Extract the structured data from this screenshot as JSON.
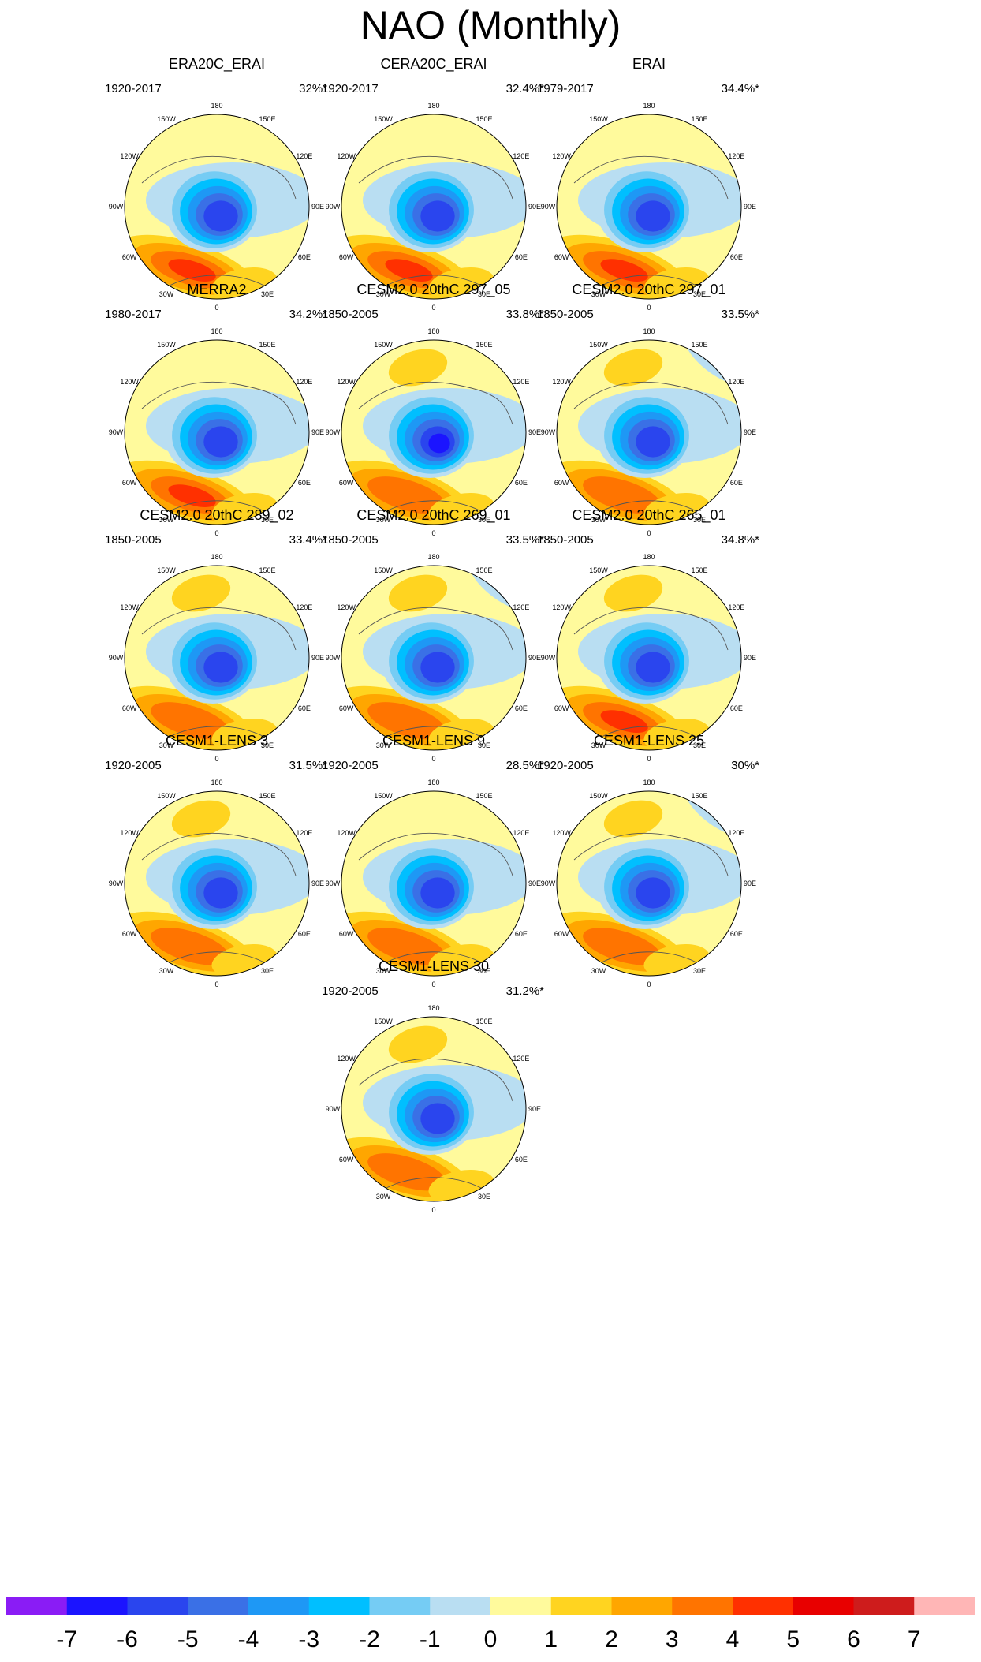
{
  "title": "NAO (Monthly)",
  "chart_data": {
    "type": "polar_contour_map_panels",
    "projection": "north polar stereographic",
    "longitude_labels": [
      "180",
      "150E",
      "120E",
      "90E",
      "60E",
      "30E",
      "0",
      "30W",
      "60W",
      "90W",
      "120W",
      "150W"
    ],
    "panels": [
      {
        "title": "ERA20C_ERAI",
        "years": "1920-2017",
        "variance": "32%*",
        "low_min": -6,
        "high_max": 4,
        "pacific_lobe": 0,
        "east_lobe": -1,
        "nw_pacific_neg": false
      },
      {
        "title": "CERA20C_ERAI",
        "years": "1920-2017",
        "variance": "32.4%*",
        "low_min": -6,
        "high_max": 4,
        "pacific_lobe": 0,
        "east_lobe": -1,
        "nw_pacific_neg": false
      },
      {
        "title": "ERAI",
        "years": "1979-2017",
        "variance": "34.4%*",
        "low_min": -6,
        "high_max": 4,
        "pacific_lobe": 0,
        "east_lobe": -1,
        "nw_pacific_neg": false
      },
      {
        "title": "MERRA2",
        "years": "1980-2017",
        "variance": "34.2%*",
        "low_min": -6,
        "high_max": 4,
        "pacific_lobe": 0,
        "east_lobe": -1,
        "nw_pacific_neg": false
      },
      {
        "title": "CESM2.0 20thC 297_05",
        "years": "1850-2005",
        "variance": "33.8%*",
        "low_min": -7,
        "high_max": 3,
        "pacific_lobe": 2,
        "east_lobe": -1,
        "nw_pacific_neg": false
      },
      {
        "title": "CESM2.0 20thC 297_01",
        "years": "1850-2005",
        "variance": "33.5%*",
        "low_min": -6,
        "high_max": 3,
        "pacific_lobe": 2,
        "east_lobe": -1,
        "nw_pacific_neg": true
      },
      {
        "title": "CESM2.0 20thC 289_02",
        "years": "1850-2005",
        "variance": "33.4%*",
        "low_min": -6,
        "high_max": 3,
        "pacific_lobe": 2,
        "east_lobe": -1,
        "nw_pacific_neg": false
      },
      {
        "title": "CESM2.0 20thC 269_01",
        "years": "1850-2005",
        "variance": "33.5%*",
        "low_min": -6,
        "high_max": 3,
        "pacific_lobe": 2,
        "east_lobe": -1,
        "nw_pacific_neg": true
      },
      {
        "title": "CESM2.0 20thC 265_01",
        "years": "1850-2005",
        "variance": "34.8%*",
        "low_min": -6,
        "high_max": 4,
        "pacific_lobe": 2,
        "east_lobe": -1,
        "nw_pacific_neg": false
      },
      {
        "title": "CESM1-LENS 3",
        "years": "1920-2005",
        "variance": "31.5%*",
        "low_min": -6,
        "high_max": 3,
        "pacific_lobe": 2,
        "east_lobe": -1,
        "nw_pacific_neg": false
      },
      {
        "title": "CESM1-LENS 9",
        "years": "1920-2005",
        "variance": "28.5%*",
        "low_min": -6,
        "high_max": 3,
        "pacific_lobe": 0,
        "east_lobe": -1,
        "nw_pacific_neg": false
      },
      {
        "title": "CESM1-LENS 25",
        "years": "1920-2005",
        "variance": "30%*",
        "low_min": -6,
        "high_max": 3,
        "pacific_lobe": 2,
        "east_lobe": -1,
        "nw_pacific_neg": true
      },
      {
        "title": "CESM1-LENS 30",
        "years": "1920-2005",
        "variance": "31.2%*",
        "low_min": -6,
        "high_max": 3,
        "pacific_lobe": 2,
        "east_lobe": -1,
        "nw_pacific_neg": false
      }
    ],
    "colorbar": {
      "tick_labels": [
        "-7",
        "-6",
        "-5",
        "-4",
        "-3",
        "-2",
        "-1",
        "0",
        "1",
        "2",
        "3",
        "4",
        "5",
        "6",
        "7"
      ],
      "colors": [
        "#8a1cf5",
        "#1b14ff",
        "#2a45ee",
        "#3a70e6",
        "#1e98f5",
        "#00bfff",
        "#75ccf4",
        "#b9def2",
        "#fffa9c",
        "#ffd420",
        "#ffa600",
        "#ff7400",
        "#ff3000",
        "#e80000",
        "#ce1c1c",
        "#ffb6b6"
      ]
    },
    "level_colors": {
      "-7": "#1b14ff",
      "-6": "#2a45ee",
      "-5": "#3a70e6",
      "-4": "#1e98f5",
      "-3": "#00bfff",
      "-2": "#75ccf4",
      "-1": "#b9def2",
      "0": "#fffa9c",
      "1": "#ffd420",
      "2": "#ffa600",
      "3": "#ff7400",
      "4": "#ff3000"
    }
  }
}
